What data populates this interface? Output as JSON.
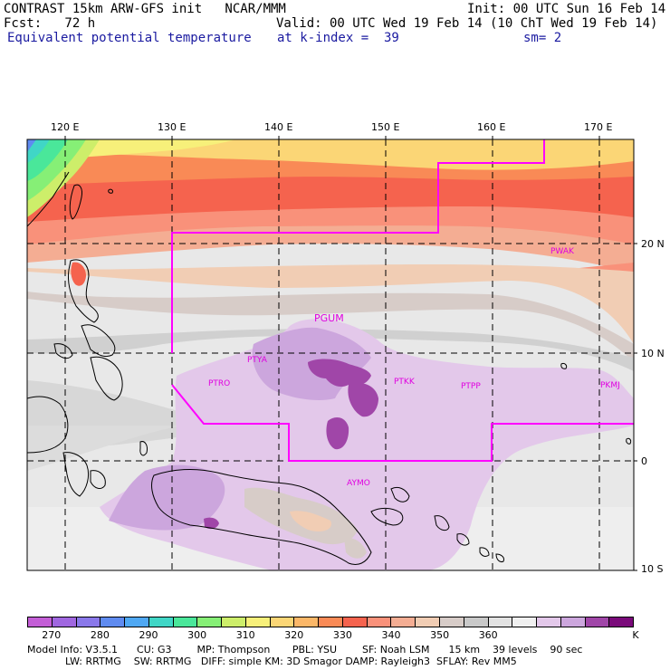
{
  "header": {
    "line1_left": "CONTRAST 15km ARW-GFS init   NCAR/MMM",
    "line1_right": "Init: 00 UTC Sun 16 Feb 14",
    "line2_left": "Fcst:   72 h",
    "line2_right": "Valid: 00 UTC Wed 19 Feb 14 (10 ChT Wed 19 Feb 14)",
    "line3_left": "Equivalent potential temperature",
    "line3_mid": "at k-index =  39",
    "line3_right": "sm= 2"
  },
  "map": {
    "lon_labels": [
      "120 E",
      "130 E",
      "140 E",
      "150 E",
      "160 E",
      "170 E"
    ],
    "lat_labels": [
      "20 N",
      "10 N",
      "0",
      "10 S"
    ],
    "stations": [
      "PWAK",
      "PGUM",
      "PTYA",
      "PTRO",
      "PTKK",
      "PTPP",
      "PKMJ",
      "AYMO"
    ],
    "boundary_color": "#ff00ff"
  },
  "colorbar": {
    "colors": [
      "#c35ed6",
      "#a067e0",
      "#8a78ea",
      "#5f8bf0",
      "#4fa8f3",
      "#40d6c6",
      "#4ae79a",
      "#86ef76",
      "#cdee6a",
      "#f7f07a",
      "#fbd676",
      "#fbb768",
      "#f98a56",
      "#f5634e",
      "#f9917a",
      "#f4ad93",
      "#f1cdb4",
      "#d7ccc8",
      "#c9c9c9",
      "#e2e2e2",
      "#f0f0f0",
      "#e3c8ea",
      "#cca6dd",
      "#a046a8",
      "#7a0a7a"
    ],
    "ticks": [
      "270",
      "280",
      "290",
      "300",
      "310",
      "320",
      "330",
      "340",
      "350",
      "360",
      "K"
    ]
  },
  "model_info": {
    "line1": "Model Info: V3.5.1      CU: G3        MP: Thompson       PBL: YSU        SF: Noah LSM      15 km    39 levels    90 sec",
    "line2": "            LW: RRTMG    SW: RRTMG   DIFF: simple KM: 3D Smagor DAMP: Rayleigh3  SFLAY: Rev MM5"
  }
}
